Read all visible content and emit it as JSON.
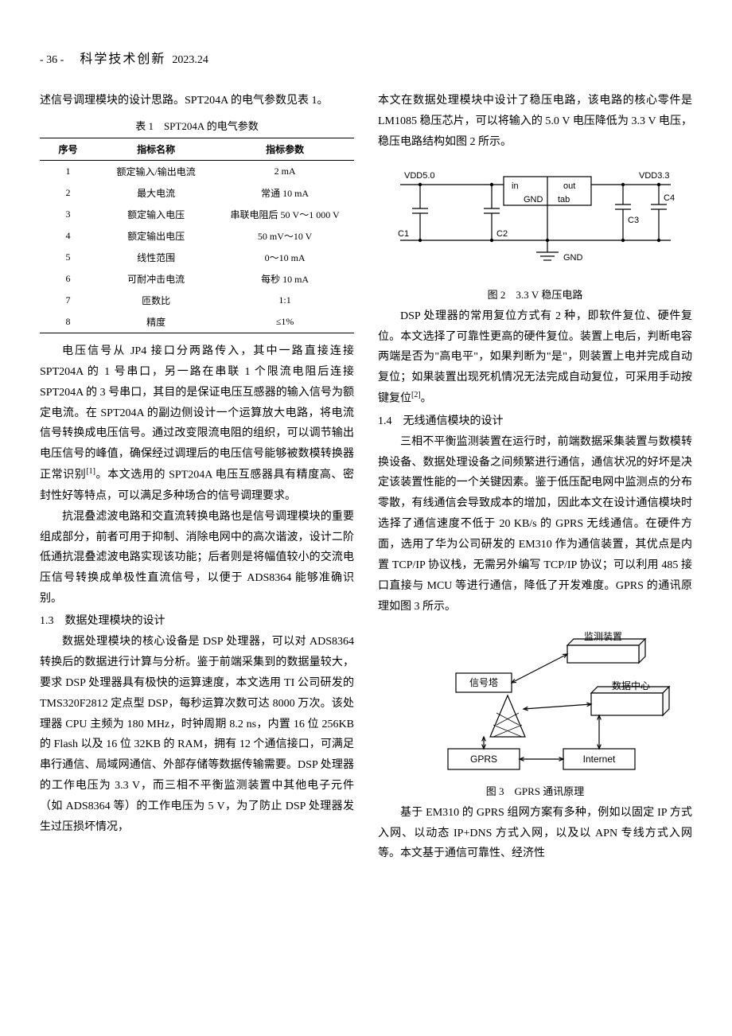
{
  "header": {
    "page_num": "- 36 -",
    "journal": "科学技术创新",
    "issue": "2023.24"
  },
  "left": {
    "p1": "述信号调理模块的设计思路。SPT204A 的电气参数见表 1。",
    "table_caption": "表 1　SPT204A 的电气参数",
    "table": {
      "columns": [
        "序号",
        "指标名称",
        "指标参数"
      ],
      "rows": [
        [
          "1",
          "额定输入/输出电流",
          "2 mA"
        ],
        [
          "2",
          "最大电流",
          "常通 10 mA"
        ],
        [
          "3",
          "额定输入电压",
          "串联电阻后 50 V～1 000 V"
        ],
        [
          "4",
          "额定输出电压",
          "50 mV～10 V"
        ],
        [
          "5",
          "线性范围",
          "0～10 mA"
        ],
        [
          "6",
          "可耐冲击电流",
          "每秒 10 mA"
        ],
        [
          "7",
          "匝数比",
          "1:1"
        ],
        [
          "8",
          "精度",
          "≤1%"
        ]
      ],
      "col_widths": [
        "18%",
        "38%",
        "44%"
      ]
    },
    "p2": "电压信号从 JP4 接口分两路传入，其中一路直接连接 SPT204A 的 1 号串口，另一路在串联 1 个限流电阻后连接 SPT204A 的 3 号串口，其目的是保证电压互感器的输入信号为额定电流。在 SPT204A 的副边侧设计一个运算放大电路，将电流信号转换成电压信号。通过改变限流电阻的组织，可以调节输出电压信号的峰值，确保经过调理后的电压信号能够被数模转换器正常识别",
    "p2_ref": "[1]",
    "p2b": "。本文选用的 SPT204A 电压互感器具有精度高、密封性好等特点，可以满足多种场合的信号调理要求。",
    "p3": "抗混叠滤波电路和交直流转换电路也是信号调理模块的重要组成部分，前者可用于抑制、消除电网中的高次谐波，设计二阶低通抗混叠滤波电路实现该功能；后者则是将幅值较小的交流电压信号转换成单极性直流信号，以便于 ADS8364 能够准确识别。",
    "sec13": "1.3　数据处理模块的设计",
    "p4": "数据处理模块的核心设备是 DSP 处理器，可以对 ADS8364 转换后的数据进行计算与分析。鉴于前端采集到的数据量较大，要求 DSP 处理器具有极快的运算速度，本文选用 TI 公司研发的 TMS320F2812 定点型 DSP，每秒运算次数可达 8000 万次。该处理器 CPU 主频为 180 MHz，时钟周期 8.2 ns，内置 16 位 256KB 的 Flash 以及 16 位 32KB 的 RAM，拥有 12 个通信接口，可满足串行通信、局域网通信、外部存储等数据传输需要。DSP 处理器的工作电压为 3.3 V，而三相不平衡监测装置中其他电子元件（如 ADS8364 等）的工作电压为 5 V，为了防止 DSP 处理器发生过压损坏情况，"
  },
  "right": {
    "p1": "本文在数据处理模块中设计了稳压电路，该电路的核心零件是 LM1085 稳压芯片，可以将输入的 5.0 V 电压降低为 3.3 V 电压，稳压电路结构如图 2 所示。",
    "fig2": {
      "labels": {
        "vdd50": "VDD5.0",
        "vdd33": "VDD3.3",
        "in": "in",
        "out": "out",
        "tab": "tab",
        "gnd_label": "GND",
        "c1": "C1",
        "c2": "C2",
        "c3": "C3",
        "c4": "C4",
        "gnd_bottom": "GND"
      },
      "caption": "图 2　3.3 V 稳压电路",
      "line_color": "#000000",
      "stroke_width": 1.2,
      "font_size": 11
    },
    "p2a": "DSP 处理器的常用复位方式有 2 种，即软件复位、硬件复位。本文选择了可靠性更高的硬件复位。装置上电后，判断电容两端是否为\"高电平\"，如果判断为\"是\"，则装置上电并完成自动复位；如果装置出现死机情况无法完成自动复位，可采用手动按键复位",
    "p2_ref": "[2]",
    "p2b": "。",
    "sec14": "1.4　无线通信模块的设计",
    "p3": "三相不平衡监测装置在运行时，前端数据采集装置与数模转换设备、数据处理设备之间频繁进行通信，通信状况的好坏是决定该装置性能的一个关键因素。鉴于低压配电网中监测点的分布零散，有线通信会导致成本的增加，因此本文在设计通信模块时选择了通信速度不低于 20 KB/s 的 GPRS 无线通信。在硬件方面，选用了华为公司研发的 EM310 作为通信装置，其优点是内置 TCP/IP 协议栈，无需另外编写 TCP/IP 协议；可以利用 485 接口直接与 MCU 等进行通信，降低了开发难度。GPRS 的通讯原理如图 3 所示。",
    "fig3": {
      "labels": {
        "monitor": "监测装置",
        "tower": "信号塔",
        "datacenter": "数据中心",
        "gprs": "GPRS",
        "internet": "Internet"
      },
      "caption": "图 3　GPRS 通讯原理",
      "line_color": "#000000",
      "fill_light": "#f5f5f5",
      "stroke_width": 1.2,
      "font_size": 12
    },
    "p4": "基于 EM310 的 GPRS 组网方案有多种，例如以固定 IP 方式入网、以动态 IP+DNS 方式入网，以及以 APN 专线方式入网等。本文基于通信可靠性、经济性"
  }
}
